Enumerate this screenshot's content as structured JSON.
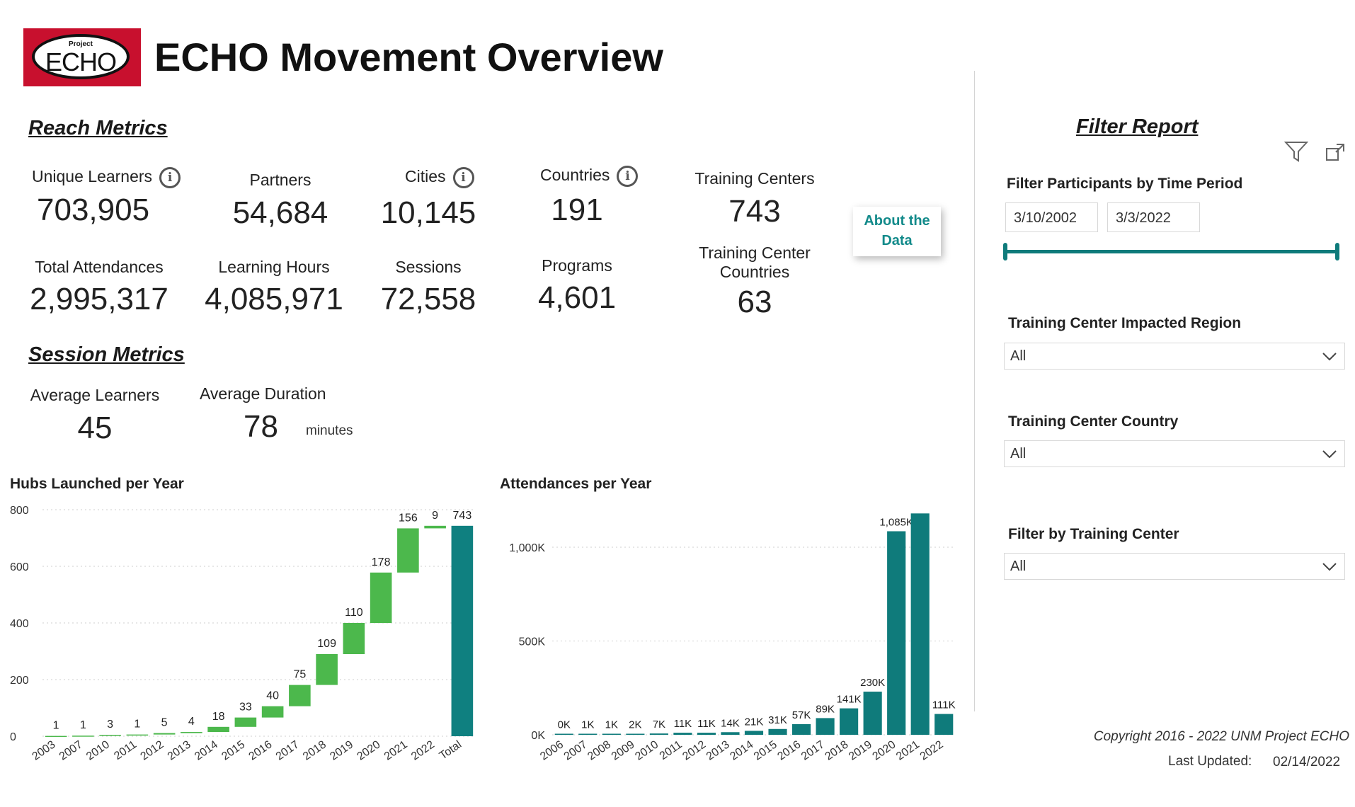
{
  "header": {
    "logo_top": "Project",
    "logo_main": "ECHO",
    "title": "ECHO Movement Overview"
  },
  "reach": {
    "heading": "Reach Metrics",
    "metrics": [
      {
        "label": "Unique Learners",
        "value": "703,905"
      },
      {
        "label": "Partners",
        "value": "54,684"
      },
      {
        "label": "Cities",
        "value": "10,145"
      },
      {
        "label": "Countries",
        "value": "191"
      },
      {
        "label": "Training Centers",
        "value": "743"
      },
      {
        "label": "Total Attendances",
        "value": "2,995,317"
      },
      {
        "label": "Learning Hours",
        "value": "4,085,971"
      },
      {
        "label": "Sessions",
        "value": "72,558"
      },
      {
        "label": "Programs",
        "value": "4,601"
      },
      {
        "label_line1": "Training Center",
        "label_line2": "Countries",
        "value": "63"
      }
    ],
    "info_glyph": "i"
  },
  "about_button": {
    "line1": "About the",
    "line2": "Data"
  },
  "session": {
    "heading": "Session Metrics",
    "avg_learners_label": "Average Learners",
    "avg_learners_value": "45",
    "avg_duration_label": "Average Duration",
    "avg_duration_value": "78",
    "duration_unit": "minutes"
  },
  "filters": {
    "heading": "Filter Report",
    "time_period_label": "Filter Participants by Time Period",
    "start_date": "3/10/2002",
    "end_date": "3/3/2022",
    "slider_range": [
      0,
      1
    ],
    "region_label": "Training Center Impacted Region",
    "region_value": "All",
    "country_label": "Training Center Country",
    "country_value": "All",
    "center_label": "Filter by Training Center",
    "center_value": "All"
  },
  "footer": {
    "copyright": "Copyright 2016 - 2022 UNM Project ECHO",
    "updated_label": "Last Updated:",
    "updated_value": "02/14/2022"
  },
  "colors": {
    "increase": "#4cb84c",
    "total": "#0f8080",
    "teal": "#0f7b7b",
    "logo_red": "#c8102e"
  },
  "chart_data": [
    {
      "type": "bar",
      "subtype": "waterfall",
      "title": "Hubs Launched per Year",
      "categories": [
        "2003",
        "2007",
        "2010",
        "2011",
        "2012",
        "2013",
        "2014",
        "2015",
        "2016",
        "2017",
        "2018",
        "2019",
        "2020",
        "2021",
        "2022",
        "Total"
      ],
      "values": [
        1,
        1,
        3,
        1,
        5,
        4,
        18,
        33,
        40,
        75,
        109,
        110,
        178,
        156,
        9,
        743
      ],
      "labels": [
        "1",
        "1",
        "3",
        "1",
        "5",
        "4",
        "18",
        "33",
        "40",
        "75",
        "109",
        "110",
        "178",
        "156",
        "9",
        "743"
      ],
      "yticks": [
        "0",
        "200",
        "400",
        "600",
        "800"
      ],
      "ylim": [
        0,
        800
      ],
      "grid": true
    },
    {
      "type": "bar",
      "title": "Attendances per Year",
      "categories": [
        "2006",
        "2007",
        "2008",
        "2009",
        "2010",
        "2011",
        "2012",
        "2013",
        "2014",
        "2015",
        "2016",
        "2017",
        "2018",
        "2019",
        "2020",
        "2021",
        "2022"
      ],
      "values": [
        0,
        1000,
        1000,
        2000,
        7000,
        11000,
        11000,
        14000,
        21000,
        31000,
        57000,
        89000,
        141000,
        230000,
        1085000,
        1180000,
        111000
      ],
      "labels": [
        "0K",
        "1K",
        "1K",
        "2K",
        "7K",
        "11K",
        "11K",
        "14K",
        "21K",
        "31K",
        "57K",
        "89K",
        "141K",
        "230K",
        "1,085K",
        "",
        "111K"
      ],
      "yticks": [
        "0K",
        "500K",
        "1,000K"
      ],
      "ylim": [
        0,
        1200000
      ],
      "grid": true
    }
  ]
}
